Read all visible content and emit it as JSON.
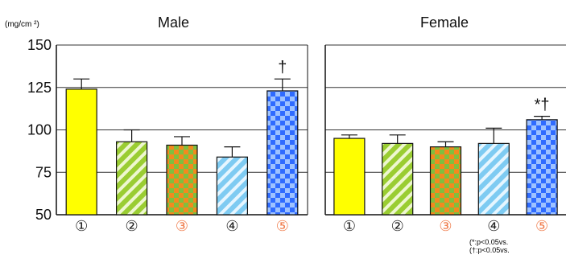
{
  "chart_data": {
    "type": "bar",
    "y_unit_label": "(mg/cm ²)",
    "ylim": [
      50,
      150
    ],
    "yticks": [
      50,
      75,
      100,
      125,
      150
    ],
    "grid": true,
    "categories": [
      "①",
      "②",
      "③",
      "④",
      "⑤"
    ],
    "category_colors": [
      "#222222",
      "#222222",
      "#f07b4a",
      "#222222",
      "#f07b4a"
    ],
    "bar_styles": [
      "solid-yellow",
      "green-diagonal-stripes",
      "orange-green-checker",
      "lightblue-diagonal-stripes",
      "blue-checker"
    ],
    "panels": [
      {
        "title": "Male",
        "values": [
          124,
          93,
          91,
          84,
          123
        ],
        "errors": [
          6,
          7,
          5,
          6,
          7
        ],
        "annotations": [
          "",
          "",
          "",
          "",
          "†"
        ]
      },
      {
        "title": "Female",
        "values": [
          95,
          92,
          90,
          92,
          106
        ],
        "errors": [
          2,
          5,
          3,
          9,
          2
        ],
        "annotations": [
          "",
          "",
          "",
          "",
          "*†"
        ]
      }
    ]
  },
  "footnotes": [
    "(*:p<0.05vs.",
    "(†:p<0.05vs."
  ],
  "colors": {
    "yellow": "#ffff00",
    "green": "#9acd32",
    "orange": "#f28a1e",
    "lightblue": "#7ecbf2",
    "blue": "#2f6bff"
  }
}
